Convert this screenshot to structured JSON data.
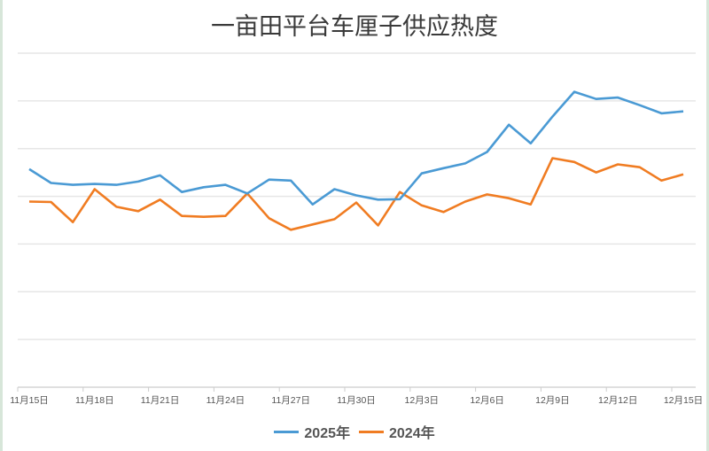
{
  "title": "一亩田平台车厘子供应热度",
  "colors": {
    "series_2025": "#4a9ad4",
    "series_2024": "#f07c22",
    "grid": "#e6e6e6",
    "axis": "#cccccc",
    "text": "#555555"
  },
  "chart_data": {
    "type": "line",
    "title": "一亩田平台车厘子供应热度",
    "xlabel": "",
    "ylabel": "",
    "ylim": [
      0,
      70
    ],
    "grid": true,
    "y_ticks_visible": false,
    "legend_position": "bottom",
    "x": [
      "11月15日",
      "11月16日",
      "11月17日",
      "11月18日",
      "11月19日",
      "11月20日",
      "11月21日",
      "11月22日",
      "11月23日",
      "11月24日",
      "11月25日",
      "11月26日",
      "11月27日",
      "11月28日",
      "11月29日",
      "11月30日",
      "12月1日",
      "12月2日",
      "12月3日",
      "12月4日",
      "12月5日",
      "12月6日",
      "12月7日",
      "12月8日",
      "12月9日",
      "12月10日",
      "12月11日",
      "12月12日",
      "12月13日",
      "12月14日",
      "12月15日"
    ],
    "tick_labels": [
      "11月15日",
      "11月18日",
      "11月21日",
      "11月24日",
      "11月27日",
      "11月30日",
      "12月3日",
      "12月6日",
      "12月9日",
      "12月12日",
      "12月15日"
    ],
    "series": [
      {
        "name": "2025年",
        "color": "#4a9ad4",
        "values": [
          45.7,
          42.8,
          42.4,
          42.6,
          42.4,
          43.1,
          44.4,
          40.9,
          41.9,
          42.4,
          40.6,
          43.5,
          43.3,
          38.3,
          41.5,
          40.2,
          39.3,
          39.4,
          44.8,
          45.9,
          46.9,
          49.3,
          55.0,
          51.1,
          56.7,
          61.9,
          60.4,
          60.7,
          59.1,
          57.4,
          57.8
        ]
      },
      {
        "name": "2024年",
        "color": "#f07c22",
        "values": [
          38.9,
          38.8,
          34.6,
          41.5,
          37.8,
          36.9,
          39.3,
          35.9,
          35.7,
          35.9,
          40.6,
          35.4,
          33.0,
          34.1,
          35.2,
          38.7,
          33.9,
          40.9,
          38.1,
          36.7,
          38.9,
          40.4,
          39.6,
          38.3,
          48.0,
          47.2,
          45.0,
          46.7,
          46.1,
          43.3,
          44.6
        ]
      }
    ]
  },
  "legend": [
    {
      "label": "2025年",
      "color": "#4a9ad4"
    },
    {
      "label": "2024年",
      "color": "#f07c22"
    }
  ]
}
